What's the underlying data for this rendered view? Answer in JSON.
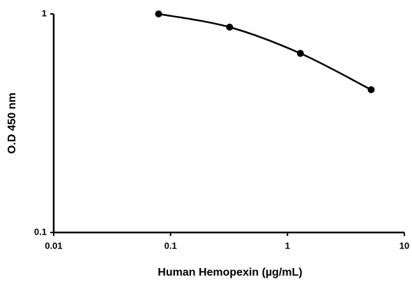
{
  "chart_data": {
    "type": "line",
    "x_label": "Human Hemopexin (µg/mL)",
    "y_label": "O.D 450 nm",
    "x": [
      0.079,
      0.32,
      1.29,
      5.2
    ],
    "series": [
      {
        "color": "#000000",
        "values": [
          1.0,
          0.87,
          0.66,
          0.45
        ]
      }
    ],
    "xlim": [
      0.01,
      10
    ],
    "ylim": [
      0.1,
      1
    ],
    "xticks": [
      0.01,
      0.1,
      1,
      10
    ],
    "yticks": [
      0.1,
      1
    ],
    "x_log": true,
    "y_log": true,
    "grid": false
  }
}
